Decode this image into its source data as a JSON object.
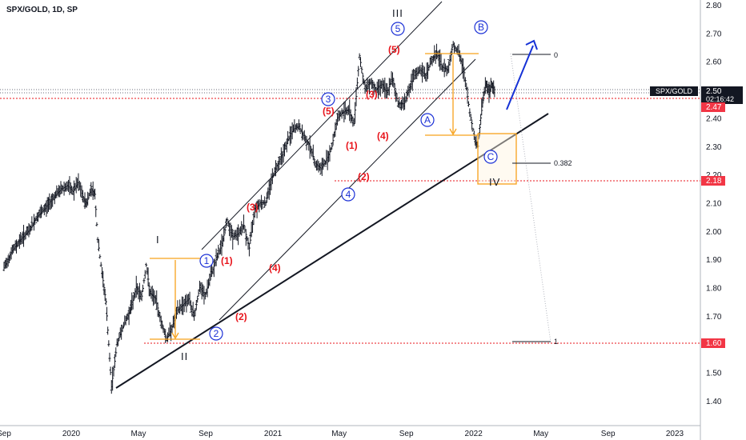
{
  "header": {
    "title": "SPX/GOLD, 1D, SP"
  },
  "colors": {
    "background": "#ffffff",
    "price": "#131722",
    "wave_red": "#e8141b",
    "wave_blue": "#1a2fd6",
    "orange": "#f7a21b",
    "badge_red": "#f23645",
    "badge_dark": "#131722",
    "arrow_blue": "#1531d6",
    "dotted_red": "#e8141b"
  },
  "badges": {
    "symbol_label": "SPX/GOLD",
    "last_price": "2.50",
    "countdown": "02:16:42",
    "level_247": "2.47",
    "level_218": "2.18",
    "level_160": "1.60"
  },
  "fib": {
    "zero": "0",
    "mid": "0.382",
    "one": "1"
  },
  "chart_data": {
    "type": "line",
    "title": "SPX/GOLD, 1D, SP",
    "ylim": [
      1.35,
      2.83
    ],
    "y_ticks": [
      "2.80",
      "2.70",
      "2.60",
      "2.50",
      "2.40",
      "2.30",
      "2.20",
      "2.10",
      "2.00",
      "1.90",
      "1.80",
      "1.70",
      "1.60",
      "1.50",
      "1.40"
    ],
    "x_ticks": [
      "Sep",
      "2020",
      "May",
      "Sep",
      "2021",
      "May",
      "Sep",
      "2022",
      "May",
      "Sep",
      "2023"
    ],
    "x_tick_t": [
      0,
      122,
      244,
      366,
      488,
      608,
      730,
      852,
      974,
      1096,
      1217
    ],
    "series": [
      {
        "t": [
          0,
          15,
          30,
          45,
          60,
          75,
          90,
          105,
          115,
          125,
          135,
          145,
          150,
          158,
          165,
          170,
          178,
          185,
          190,
          195,
          205,
          215,
          225,
          232,
          240,
          250,
          258,
          265,
          275,
          285,
          295,
          305,
          315,
          325,
          335,
          345,
          355,
          365,
          375,
          385,
          395,
          405,
          415,
          425,
          435,
          445,
          455,
          465,
          475,
          485,
          495,
          505,
          515,
          525,
          535,
          545,
          555,
          565,
          575,
          585,
          595,
          605,
          615,
          625,
          635,
          645,
          655,
          665,
          675,
          685,
          695,
          705,
          715,
          725,
          735,
          745,
          755,
          765,
          775,
          785,
          795,
          805,
          815,
          825,
          835,
          845,
          855,
          860,
          865,
          870,
          875,
          880,
          885,
          890
        ],
        "values": [
          1.87,
          1.93,
          1.97,
          2.0,
          2.05,
          2.08,
          2.12,
          2.15,
          2.16,
          2.14,
          2.17,
          2.11,
          2.1,
          2.15,
          2.13,
          1.97,
          1.85,
          1.75,
          1.6,
          1.45,
          1.6,
          1.66,
          1.7,
          1.74,
          1.8,
          1.77,
          1.88,
          1.78,
          1.76,
          1.68,
          1.62,
          1.66,
          1.72,
          1.74,
          1.76,
          1.7,
          1.8,
          1.77,
          1.84,
          1.9,
          1.95,
          2.04,
          1.98,
          1.99,
          2.02,
          1.94,
          2.08,
          2.1,
          2.1,
          2.18,
          2.23,
          2.27,
          2.32,
          2.36,
          2.37,
          2.33,
          2.3,
          2.24,
          2.22,
          2.25,
          2.3,
          2.4,
          2.42,
          2.43,
          2.38,
          2.62,
          2.5,
          2.53,
          2.5,
          2.52,
          2.49,
          2.54,
          2.45,
          2.45,
          2.5,
          2.55,
          2.57,
          2.55,
          2.6,
          2.63,
          2.58,
          2.57,
          2.66,
          2.63,
          2.56,
          2.42,
          2.32,
          2.3,
          2.4,
          2.48,
          2.52,
          2.49,
          2.52,
          2.5
        ]
      }
    ],
    "levels": [
      2.5,
      2.47,
      2.18,
      1.6
    ]
  }
}
